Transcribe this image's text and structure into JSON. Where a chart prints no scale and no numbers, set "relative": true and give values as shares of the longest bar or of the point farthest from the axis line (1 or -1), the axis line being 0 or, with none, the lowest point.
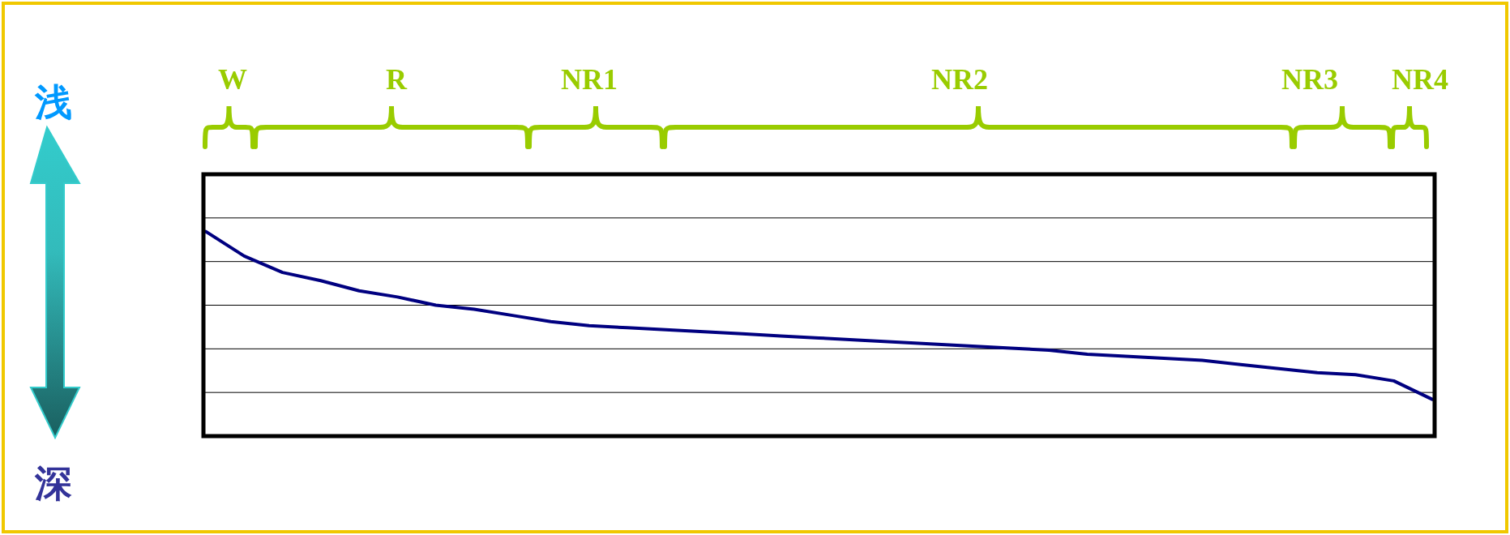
{
  "chart_data": {
    "type": "line",
    "relative": true,
    "grid": true,
    "color": "#000080",
    "categories": [
      null,
      null,
      null,
      null,
      null,
      null,
      null,
      null,
      null,
      null,
      null,
      null,
      null,
      null,
      null,
      null,
      null,
      null,
      null,
      null,
      null,
      null,
      null,
      null,
      null,
      null,
      null,
      null,
      null,
      null,
      null,
      null,
      null
    ],
    "values": [
      1.0,
      0.88,
      0.8,
      0.76,
      0.71,
      0.68,
      0.64,
      0.62,
      0.59,
      0.56,
      0.54,
      0.53,
      0.52,
      0.51,
      0.5,
      0.49,
      0.48,
      0.47,
      0.46,
      0.45,
      0.44,
      0.43,
      0.42,
      0.4,
      0.39,
      0.38,
      0.37,
      0.35,
      0.33,
      0.31,
      0.3,
      0.27,
      0.18
    ],
    "annotations": [
      "浅",
      "深",
      "W",
      "R",
      "NR1",
      "NR2",
      "NR3",
      "NR4"
    ]
  }
}
